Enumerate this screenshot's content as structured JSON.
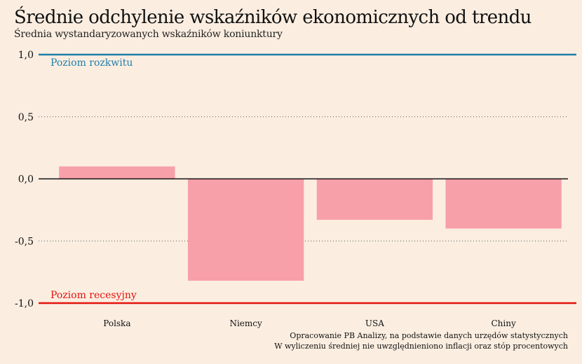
{
  "chart_data": {
    "type": "bar",
    "title": "Średnie odchylenie wskaźników ekonomicznych od trendu",
    "subtitle": "Średnia wystandaryzowanych wskaźników koniunktury",
    "categories": [
      "Polska",
      "Niemcy",
      "USA",
      "Chiny"
    ],
    "values": [
      0.1,
      -0.82,
      -0.33,
      -0.4
    ],
    "ylim": [
      -1.0,
      1.0
    ],
    "yticks": [
      {
        "value": 1.0,
        "label": "1,0"
      },
      {
        "value": 0.5,
        "label": "0,5"
      },
      {
        "value": 0.0,
        "label": "0,0"
      },
      {
        "value": -0.5,
        "label": "-0,5"
      },
      {
        "value": -1.0,
        "label": "-1,0"
      }
    ],
    "reference_lines": [
      {
        "value": 1.0,
        "label": "Poziom rozkwitu",
        "color": "#1f7ea8"
      },
      {
        "value": -1.0,
        "label": "Poziom recesyjny",
        "color": "#e3120b"
      }
    ],
    "bar_color": "#f7a0aa",
    "grid": "dotted",
    "notes": [
      "Opracowanie PB Analizy, na podstawie danych urzędów statystycznych",
      "W wyliczeniu średniej nie uwzględnieniono inflacji oraz stóp procentowych"
    ]
  }
}
